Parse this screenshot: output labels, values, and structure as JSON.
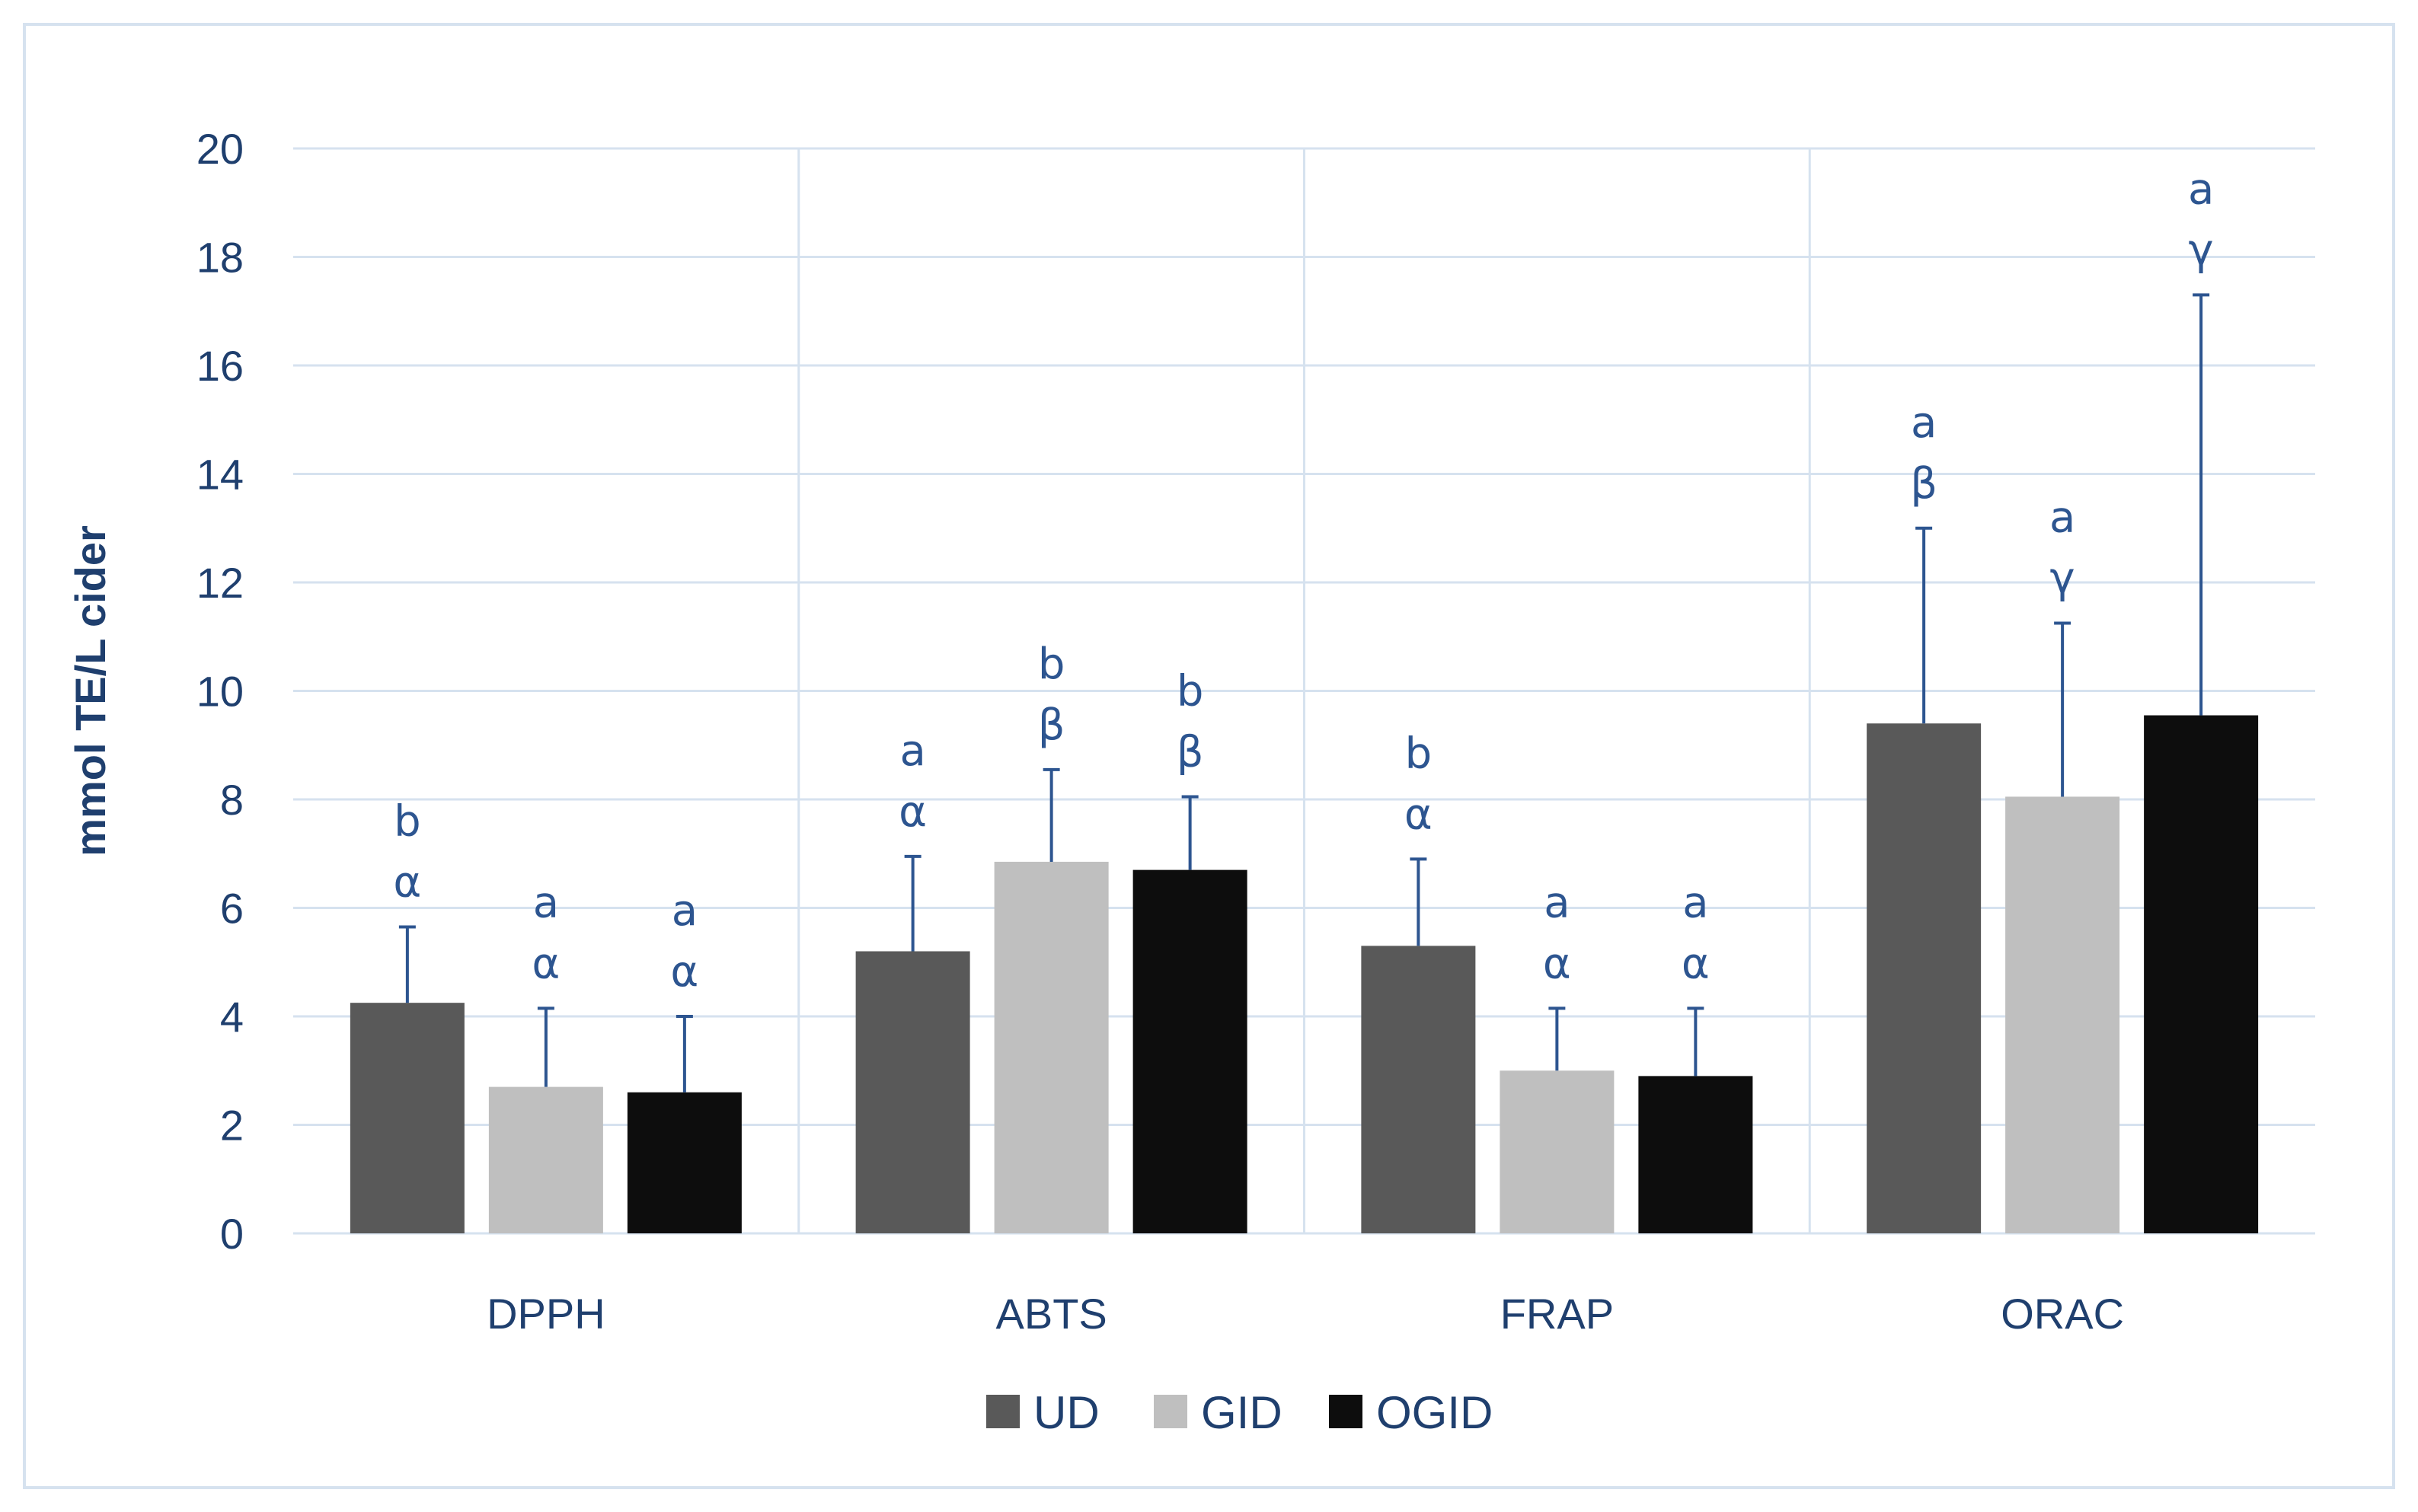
{
  "chart_data": {
    "type": "bar",
    "title": "",
    "xlabel": "",
    "ylabel": "mmol TE/L cider",
    "ylim": [
      0,
      20
    ],
    "yticks": [
      0,
      2,
      4,
      6,
      8,
      10,
      12,
      14,
      16,
      18,
      20
    ],
    "categories": [
      "DPPH",
      "ABTS",
      "FRAP",
      "ORAC"
    ],
    "grid": true,
    "legend_position": "bottom-center",
    "series": [
      {
        "name": "UD",
        "color": "#595959",
        "values": [
          4.25,
          5.2,
          5.3,
          9.4
        ],
        "errors": [
          1.4,
          1.75,
          1.6,
          3.6
        ],
        "labels_top": [
          "b",
          "a",
          "b",
          "a"
        ],
        "labels_bottom": [
          "α",
          "α",
          "α",
          "β"
        ]
      },
      {
        "name": "GID",
        "color": "#bfbfbf",
        "values": [
          2.7,
          6.85,
          3.0,
          8.05
        ],
        "errors": [
          1.45,
          1.7,
          1.15,
          3.2
        ],
        "labels_top": [
          "a",
          "b",
          "a",
          "a"
        ],
        "labels_bottom": [
          "α",
          "β",
          "α",
          "γ"
        ]
      },
      {
        "name": "OGID",
        "color": "#0d0d0d",
        "values": [
          2.6,
          6.7,
          2.9,
          9.55
        ],
        "errors": [
          1.4,
          1.35,
          1.25,
          7.75
        ],
        "labels_top": [
          "a",
          "b",
          "a",
          "a"
        ],
        "labels_bottom": [
          "α",
          "β",
          "α",
          "γ"
        ]
      }
    ],
    "colors": {
      "axis_text": "#1f3f6e",
      "gridline": "#d6e2ef",
      "error_bar": "#2d5590",
      "significance_text": "#2d5590"
    }
  }
}
